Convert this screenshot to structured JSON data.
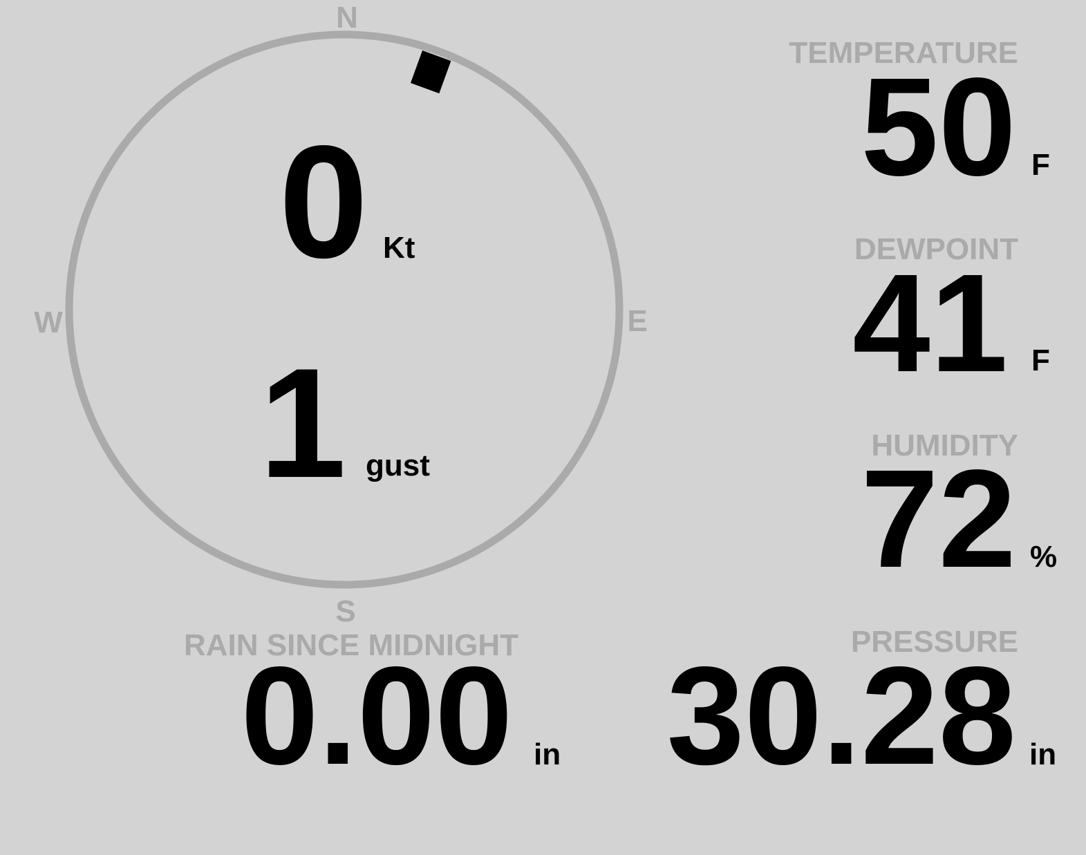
{
  "colors": {
    "background": "#d3d3d3",
    "label": "#aaaaaa",
    "value": "#000000",
    "compass_ring": "#aaaaaa"
  },
  "wind": {
    "speed": "0",
    "speed_unit": "Kt",
    "gust": "1",
    "gust_label": "gust",
    "direction_deg": 20,
    "compass": {
      "n": "N",
      "e": "E",
      "s": "S",
      "w": "W"
    }
  },
  "temperature": {
    "label": "TEMPERATURE",
    "value": "50",
    "unit": "F"
  },
  "dewpoint": {
    "label": "DEWPOINT",
    "value": "41",
    "unit": "F"
  },
  "humidity": {
    "label": "HUMIDITY",
    "value": "72",
    "unit": "%"
  },
  "pressure": {
    "label": "PRESSURE",
    "value": "30.28",
    "unit": "in"
  },
  "rain": {
    "label": "RAIN SINCE MIDNIGHT",
    "value": "0.00",
    "unit": "in"
  }
}
